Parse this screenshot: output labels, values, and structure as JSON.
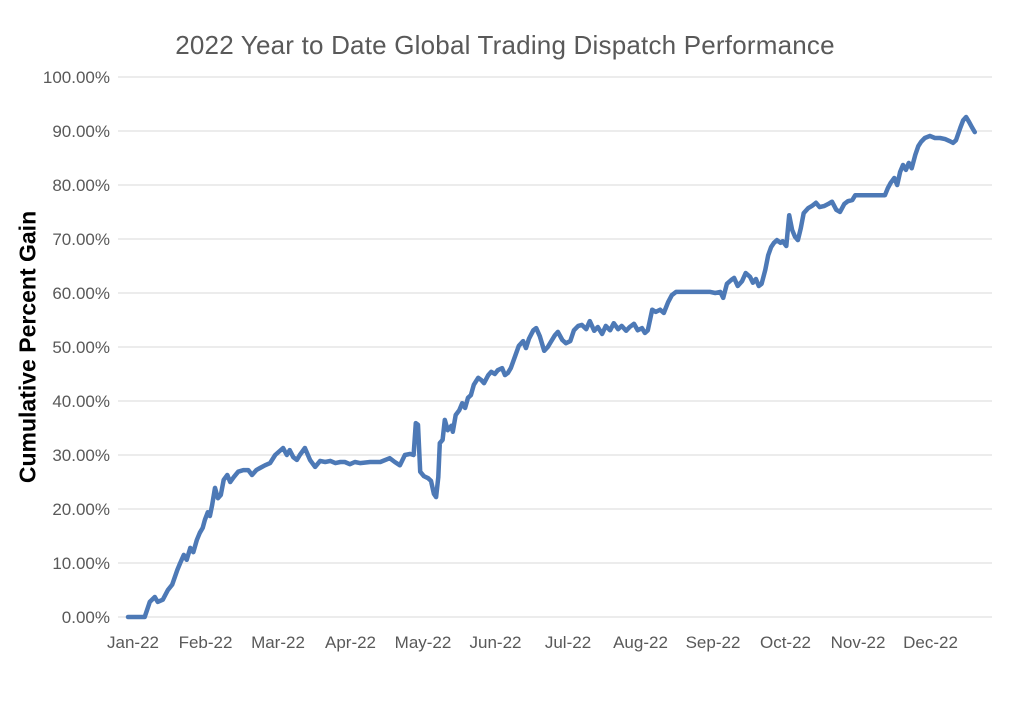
{
  "title": "2022 Year to Date Global Trading Dispatch Performance",
  "colors": {
    "line": "#4d79b6",
    "grid": "#d9d9d9",
    "tick_text": "#595959",
    "title_text": "#595959",
    "axis_title_text": "#000000",
    "background": "#ffffff"
  },
  "chart_data": {
    "type": "line",
    "title": "2022 Year to Date Global Trading Dispatch Performance",
    "xlabel": "",
    "ylabel": "Cumulative Percent Gain",
    "legend": "none",
    "grid": "horizontal",
    "ylim": [
      0,
      100
    ],
    "xlim": [
      0,
      12
    ],
    "y_ticks": [
      0,
      10,
      20,
      30,
      40,
      50,
      60,
      70,
      80,
      90,
      100
    ],
    "y_tick_labels": [
      "0.00%",
      "10.00%",
      "20.00%",
      "30.00%",
      "40.00%",
      "50.00%",
      "60.00%",
      "70.00%",
      "80.00%",
      "90.00%",
      "100.00%"
    ],
    "x_tick_labels": [
      "Jan-22",
      "Feb-22",
      "Mar-22",
      "Apr-22",
      "May-22",
      "Jun-22",
      "Jul-22",
      "Aug-22",
      "Sep-22",
      "Oct-22",
      "Nov-22",
      "Dec-22"
    ],
    "x_unit_note": "x = months since Jan-22 start (fractional = day within month), y = cumulative percent gain",
    "series": [
      {
        "name": "Cumulative Percent Gain",
        "points": [
          [
            0,
            0
          ],
          [
            0.23,
            0
          ],
          [
            0.3,
            2.8
          ],
          [
            0.37,
            3.7
          ],
          [
            0.41,
            2.8
          ],
          [
            0.48,
            3.2
          ],
          [
            0.55,
            5
          ],
          [
            0.61,
            6
          ],
          [
            0.68,
            8.7
          ],
          [
            0.72,
            10
          ],
          [
            0.77,
            11.5
          ],
          [
            0.81,
            10.6
          ],
          [
            0.86,
            12.8
          ],
          [
            0.9,
            12
          ],
          [
            0.95,
            14.3
          ],
          [
            0.99,
            15.6
          ],
          [
            1.03,
            16.5
          ],
          [
            1.06,
            18
          ],
          [
            1.1,
            19.4
          ],
          [
            1.13,
            18.7
          ],
          [
            1.16,
            20.7
          ],
          [
            1.2,
            23.9
          ],
          [
            1.24,
            22
          ],
          [
            1.28,
            22.6
          ],
          [
            1.32,
            25.4
          ],
          [
            1.37,
            26.3
          ],
          [
            1.41,
            25
          ],
          [
            1.46,
            25.9
          ],
          [
            1.52,
            26.9
          ],
          [
            1.59,
            27.2
          ],
          [
            1.66,
            27.2
          ],
          [
            1.71,
            26.3
          ],
          [
            1.77,
            27.2
          ],
          [
            1.82,
            27.6
          ],
          [
            1.89,
            28.1
          ],
          [
            1.96,
            28.5
          ],
          [
            2.03,
            30
          ],
          [
            2.14,
            31.3
          ],
          [
            2.19,
            30
          ],
          [
            2.23,
            30.9
          ],
          [
            2.28,
            29.6
          ],
          [
            2.33,
            29.1
          ],
          [
            2.37,
            30
          ],
          [
            2.44,
            31.3
          ],
          [
            2.51,
            29.1
          ],
          [
            2.58,
            27.8
          ],
          [
            2.65,
            28.9
          ],
          [
            2.72,
            28.7
          ],
          [
            2.79,
            28.9
          ],
          [
            2.86,
            28.5
          ],
          [
            2.93,
            28.7
          ],
          [
            2.99,
            28.7
          ],
          [
            3.06,
            28.3
          ],
          [
            3.13,
            28.7
          ],
          [
            3.2,
            28.5
          ],
          [
            3.34,
            28.7
          ],
          [
            3.48,
            28.7
          ],
          [
            3.61,
            29.4
          ],
          [
            3.68,
            28.7
          ],
          [
            3.75,
            28.1
          ],
          [
            3.82,
            30
          ],
          [
            3.89,
            30.2
          ],
          [
            3.94,
            30
          ],
          [
            3.97,
            35.9
          ],
          [
            4,
            35.6
          ],
          [
            4.03,
            26.9
          ],
          [
            4.08,
            26.1
          ],
          [
            4.14,
            25.7
          ],
          [
            4.18,
            25.2
          ],
          [
            4.22,
            22.8
          ],
          [
            4.25,
            22.2
          ],
          [
            4.28,
            25.9
          ],
          [
            4.3,
            32.2
          ],
          [
            4.34,
            32.8
          ],
          [
            4.37,
            36.5
          ],
          [
            4.41,
            34.6
          ],
          [
            4.46,
            35.4
          ],
          [
            4.48,
            34.3
          ],
          [
            4.52,
            37.4
          ],
          [
            4.57,
            38.3
          ],
          [
            4.61,
            39.6
          ],
          [
            4.65,
            38.7
          ],
          [
            4.69,
            40.6
          ],
          [
            4.73,
            41.1
          ],
          [
            4.77,
            43
          ],
          [
            4.83,
            44.3
          ],
          [
            4.87,
            43.9
          ],
          [
            4.91,
            43.3
          ],
          [
            4.97,
            44.8
          ],
          [
            5.01,
            45.4
          ],
          [
            5.06,
            45
          ],
          [
            5.1,
            45.7
          ],
          [
            5.16,
            46.1
          ],
          [
            5.2,
            44.8
          ],
          [
            5.24,
            45.2
          ],
          [
            5.28,
            46.1
          ],
          [
            5.34,
            48.3
          ],
          [
            5.39,
            50.2
          ],
          [
            5.45,
            51.1
          ],
          [
            5.49,
            49.8
          ],
          [
            5.53,
            51.5
          ],
          [
            5.59,
            53.1
          ],
          [
            5.63,
            53.5
          ],
          [
            5.68,
            52
          ],
          [
            5.74,
            49.3
          ],
          [
            5.79,
            50
          ],
          [
            5.83,
            50.9
          ],
          [
            5.89,
            52.2
          ],
          [
            5.93,
            52.8
          ],
          [
            5.99,
            51.3
          ],
          [
            6.04,
            50.7
          ],
          [
            6.1,
            51.1
          ],
          [
            6.15,
            53.1
          ],
          [
            6.21,
            53.9
          ],
          [
            6.26,
            54.1
          ],
          [
            6.32,
            53.3
          ],
          [
            6.37,
            54.8
          ],
          [
            6.43,
            53
          ],
          [
            6.48,
            53.7
          ],
          [
            6.54,
            52.4
          ],
          [
            6.59,
            53.9
          ],
          [
            6.65,
            53.1
          ],
          [
            6.7,
            54.4
          ],
          [
            6.76,
            53.3
          ],
          [
            6.81,
            53.9
          ],
          [
            6.87,
            53
          ],
          [
            6.92,
            53.7
          ],
          [
            6.98,
            54.3
          ],
          [
            7.03,
            53.1
          ],
          [
            7.09,
            53.5
          ],
          [
            7.13,
            52.6
          ],
          [
            7.17,
            53.1
          ],
          [
            7.23,
            56.9
          ],
          [
            7.28,
            56.5
          ],
          [
            7.34,
            56.9
          ],
          [
            7.39,
            56.3
          ],
          [
            7.45,
            58.3
          ],
          [
            7.5,
            59.6
          ],
          [
            7.56,
            60.2
          ],
          [
            7.61,
            60.2
          ],
          [
            7.75,
            60.2
          ],
          [
            7.89,
            60.2
          ],
          [
            8.03,
            60.2
          ],
          [
            8.1,
            60
          ],
          [
            8.17,
            60.2
          ],
          [
            8.21,
            59.1
          ],
          [
            8.26,
            61.7
          ],
          [
            8.32,
            62.4
          ],
          [
            8.36,
            62.8
          ],
          [
            8.41,
            61.3
          ],
          [
            8.47,
            62.2
          ],
          [
            8.52,
            63.7
          ],
          [
            8.58,
            63
          ],
          [
            8.62,
            61.9
          ],
          [
            8.66,
            62.6
          ],
          [
            8.7,
            61.3
          ],
          [
            8.74,
            61.7
          ],
          [
            8.79,
            64.3
          ],
          [
            8.83,
            67
          ],
          [
            8.87,
            68.5
          ],
          [
            8.91,
            69.3
          ],
          [
            8.95,
            69.8
          ],
          [
            9,
            69.3
          ],
          [
            9.03,
            69.6
          ],
          [
            9.08,
            68.7
          ],
          [
            9.12,
            74.4
          ],
          [
            9.16,
            71.7
          ],
          [
            9.2,
            70.4
          ],
          [
            9.24,
            69.8
          ],
          [
            9.28,
            72
          ],
          [
            9.32,
            74.8
          ],
          [
            9.38,
            75.7
          ],
          [
            9.43,
            76.1
          ],
          [
            9.49,
            76.7
          ],
          [
            9.54,
            75.9
          ],
          [
            9.6,
            76.1
          ],
          [
            9.66,
            76.5
          ],
          [
            9.71,
            76.9
          ],
          [
            9.77,
            75.4
          ],
          [
            9.82,
            75
          ],
          [
            9.88,
            76.5
          ],
          [
            9.93,
            77
          ],
          [
            9.99,
            77.2
          ],
          [
            10.03,
            78.1
          ],
          [
            10.1,
            78.1
          ],
          [
            10.23,
            78.1
          ],
          [
            10.37,
            78.1
          ],
          [
            10.44,
            78.1
          ],
          [
            10.48,
            79.4
          ],
          [
            10.52,
            80.4
          ],
          [
            10.57,
            81.3
          ],
          [
            10.61,
            80
          ],
          [
            10.65,
            82.4
          ],
          [
            10.69,
            83.7
          ],
          [
            10.73,
            82.8
          ],
          [
            10.77,
            84.1
          ],
          [
            10.81,
            83.1
          ],
          [
            10.86,
            85.6
          ],
          [
            10.9,
            87.2
          ],
          [
            10.94,
            88
          ],
          [
            10.99,
            88.7
          ],
          [
            11.06,
            89.1
          ],
          [
            11.13,
            88.7
          ],
          [
            11.2,
            88.7
          ],
          [
            11.27,
            88.5
          ],
          [
            11.34,
            88.1
          ],
          [
            11.38,
            87.8
          ],
          [
            11.42,
            88.3
          ],
          [
            11.48,
            90.6
          ],
          [
            11.52,
            92
          ],
          [
            11.56,
            92.6
          ],
          [
            11.6,
            91.7
          ],
          [
            11.64,
            90.7
          ],
          [
            11.68,
            89.8
          ]
        ]
      }
    ]
  }
}
